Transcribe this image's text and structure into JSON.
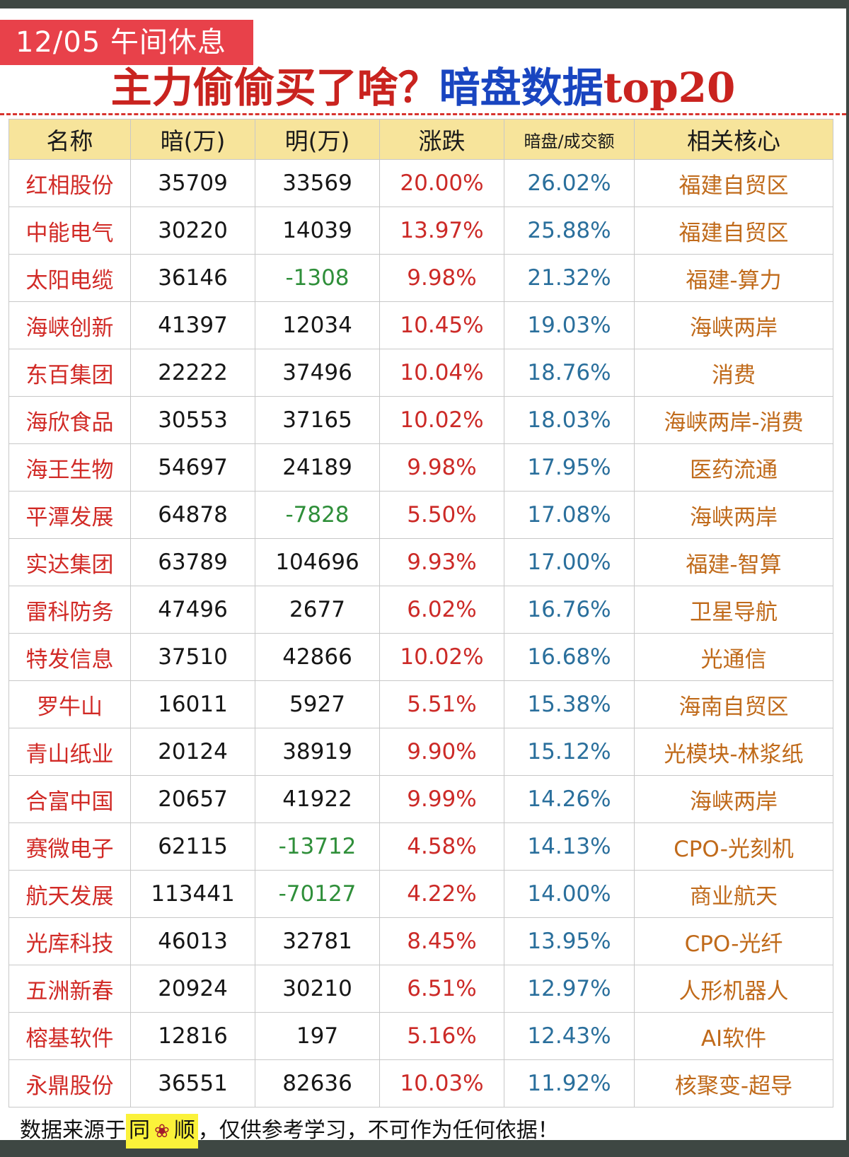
{
  "header": {
    "badge": "12/05 午间休息",
    "title_part1": "主力偷偷买了啥？",
    "title_part2": "暗盘数据",
    "title_part3": "top20"
  },
  "table": {
    "headers": [
      "名称",
      "暗(万)",
      "明(万)",
      "涨跌",
      "暗盘/成交额",
      "相关核心"
    ],
    "rows": [
      {
        "name": "红相股份",
        "dark": "35709",
        "open": "33569",
        "change": "20.00%",
        "ratio": "26.02%",
        "core": "福建自贸区"
      },
      {
        "name": "中能电气",
        "dark": "30220",
        "open": "14039",
        "change": "13.97%",
        "ratio": "25.88%",
        "core": "福建自贸区"
      },
      {
        "name": "太阳电缆",
        "dark": "36146",
        "open": "-1308",
        "change": "9.98%",
        "ratio": "21.32%",
        "core": "福建-算力"
      },
      {
        "name": "海峡创新",
        "dark": "41397",
        "open": "12034",
        "change": "10.45%",
        "ratio": "19.03%",
        "core": "海峡两岸"
      },
      {
        "name": "东百集团",
        "dark": "22222",
        "open": "37496",
        "change": "10.04%",
        "ratio": "18.76%",
        "core": "消费"
      },
      {
        "name": "海欣食品",
        "dark": "30553",
        "open": "37165",
        "change": "10.02%",
        "ratio": "18.03%",
        "core": "海峡两岸-消费"
      },
      {
        "name": "海王生物",
        "dark": "54697",
        "open": "24189",
        "change": "9.98%",
        "ratio": "17.95%",
        "core": "医药流通"
      },
      {
        "name": "平潭发展",
        "dark": "64878",
        "open": "-7828",
        "change": "5.50%",
        "ratio": "17.08%",
        "core": "海峡两岸"
      },
      {
        "name": "实达集团",
        "dark": "63789",
        "open": "104696",
        "change": "9.93%",
        "ratio": "17.00%",
        "core": "福建-智算"
      },
      {
        "name": "雷科防务",
        "dark": "47496",
        "open": "2677",
        "change": "6.02%",
        "ratio": "16.76%",
        "core": "卫星导航"
      },
      {
        "name": "特发信息",
        "dark": "37510",
        "open": "42866",
        "change": "10.02%",
        "ratio": "16.68%",
        "core": "光通信"
      },
      {
        "name": "罗牛山",
        "dark": "16011",
        "open": "5927",
        "change": "5.51%",
        "ratio": "15.38%",
        "core": "海南自贸区"
      },
      {
        "name": "青山纸业",
        "dark": "20124",
        "open": "38919",
        "change": "9.90%",
        "ratio": "15.12%",
        "core": "光模块-林浆纸"
      },
      {
        "name": "合富中国",
        "dark": "20657",
        "open": "41922",
        "change": "9.99%",
        "ratio": "14.26%",
        "core": "海峡两岸"
      },
      {
        "name": "赛微电子",
        "dark": "62115",
        "open": "-13712",
        "change": "4.58%",
        "ratio": "14.13%",
        "core": "CPO-光刻机"
      },
      {
        "name": "航天发展",
        "dark": "113441",
        "open": "-70127",
        "change": "4.22%",
        "ratio": "14.00%",
        "core": "商业航天"
      },
      {
        "name": "光库科技",
        "dark": "46013",
        "open": "32781",
        "change": "8.45%",
        "ratio": "13.95%",
        "core": "CPO-光纤"
      },
      {
        "name": "五洲新春",
        "dark": "20924",
        "open": "30210",
        "change": "6.51%",
        "ratio": "12.97%",
        "core": "人形机器人"
      },
      {
        "name": "榕基软件",
        "dark": "12816",
        "open": "197",
        "change": "5.16%",
        "ratio": "12.43%",
        "core": "AI软件"
      },
      {
        "name": "永鼎股份",
        "dark": "36551",
        "open": "82636",
        "change": "10.03%",
        "ratio": "11.92%",
        "core": "核聚变-超导"
      }
    ]
  },
  "footer": {
    "prefix": "数据来源于",
    "source_1": "同",
    "source_icon": "flower-icon",
    "source_2": "顺",
    "suffix": "，仅供参考学习，不可作为任何依据！"
  },
  "colors": {
    "badge": "#e8414a",
    "title_red": "#c9231f",
    "title_blue": "#1945c0",
    "header_bg": "#f7e49b",
    "name": "#d12a26",
    "negative": "#2f8f3a",
    "change": "#cc2a27",
    "ratio": "#2a6f9c",
    "core": "#c06a1a",
    "footer_highlight": "#fbf23a"
  }
}
